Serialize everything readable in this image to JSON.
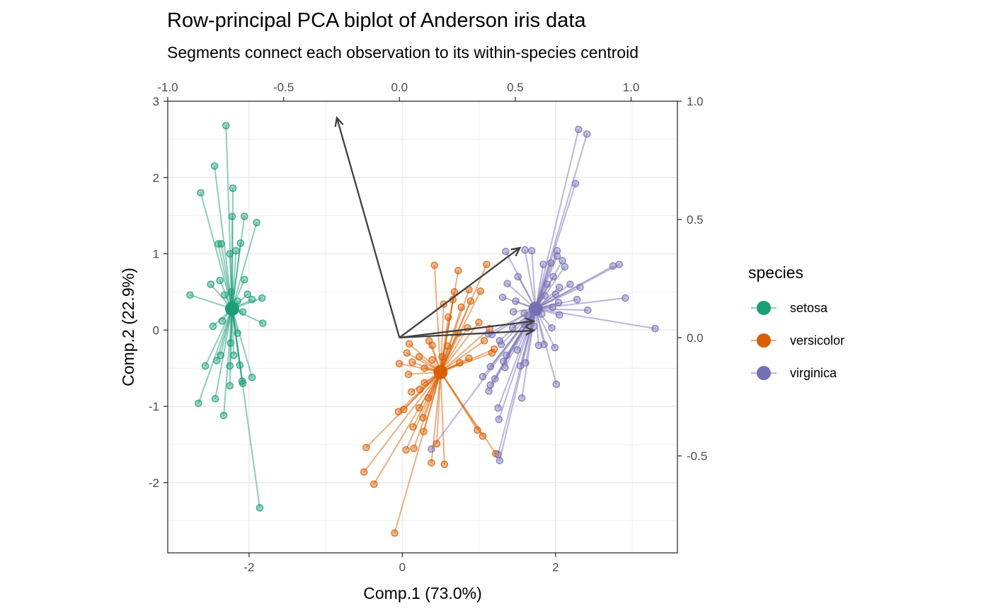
{
  "chart_data": {
    "type": "scatter",
    "title": "Row-principal PCA biplot of Anderson iris data",
    "subtitle": "Segments connect each observation to its within-species centroid",
    "xlabel": "Comp.1 (73.0%)",
    "ylabel": "Comp.2 (22.9%)",
    "xlim": [
      -3.06,
      3.59
    ],
    "ylim": [
      -2.92,
      3.0
    ],
    "x_ticks": [
      "-2",
      "0",
      "2"
    ],
    "y_ticks": [
      "-2",
      "-1",
      "0",
      "1",
      "2",
      "3"
    ],
    "x2lim": [
      -1.0,
      1.2
    ],
    "y2lim": [
      -0.91,
      1.0
    ],
    "x2_ticks": [
      "-1.0",
      "-0.5",
      "0.0",
      "0.5",
      "1.0"
    ],
    "y2_ticks": [
      "-0.5",
      "0.0",
      "0.5",
      "1.0"
    ],
    "grid": true,
    "legend": {
      "title": "species",
      "placement": "right"
    },
    "series": [
      {
        "name": "setosa",
        "color": "#1b9e77",
        "centroid": [
          -2.22,
          0.28
        ],
        "points": [
          [
            -2.3,
            2.68
          ],
          [
            -2.45,
            2.15
          ],
          [
            -2.63,
            1.8
          ],
          [
            -2.21,
            1.86
          ],
          [
            -2.22,
            1.49
          ],
          [
            -2.06,
            1.49
          ],
          [
            -1.9,
            1.41
          ],
          [
            -2.4,
            1.13
          ],
          [
            -2.36,
            1.13
          ],
          [
            -2.11,
            1.14
          ],
          [
            -2.17,
            1.04
          ],
          [
            -2.25,
            1.0
          ],
          [
            -2.38,
            0.65
          ],
          [
            -2.06,
            0.66
          ],
          [
            -2.5,
            0.6
          ],
          [
            -2.32,
            0.46
          ],
          [
            -2.15,
            0.38
          ],
          [
            -2.02,
            0.47
          ],
          [
            -1.96,
            0.4
          ],
          [
            -1.83,
            0.42
          ],
          [
            -2.77,
            0.46
          ],
          [
            -2.23,
            0.5
          ],
          [
            -2.08,
            0.24
          ],
          [
            -2.35,
            0.12
          ],
          [
            -1.82,
            0.09
          ],
          [
            -2.47,
            0.05
          ],
          [
            -2.15,
            -0.04
          ],
          [
            -2.24,
            -0.17
          ],
          [
            -2.37,
            -0.33
          ],
          [
            -2.42,
            -0.4
          ],
          [
            -2.2,
            -0.33
          ],
          [
            -2.25,
            -0.47
          ],
          [
            -2.12,
            -0.46
          ],
          [
            -2.57,
            -0.47
          ],
          [
            -1.96,
            -0.62
          ],
          [
            -2.09,
            -0.67
          ],
          [
            -2.25,
            -0.73
          ],
          [
            -2.08,
            -0.7
          ],
          [
            -2.44,
            -0.9
          ],
          [
            -2.66,
            -0.96
          ],
          [
            -2.33,
            -1.12
          ],
          [
            -1.86,
            -2.33
          ]
        ]
      },
      {
        "name": "versicolor",
        "color": "#d95f02",
        "centroid": [
          0.5,
          -0.55
        ],
        "points": [
          [
            0.42,
            0.85
          ],
          [
            1.1,
            0.86
          ],
          [
            0.73,
            0.78
          ],
          [
            0.87,
            0.53
          ],
          [
            1.02,
            0.51
          ],
          [
            0.68,
            0.5
          ],
          [
            0.66,
            0.4
          ],
          [
            0.89,
            0.38
          ],
          [
            0.54,
            0.34
          ],
          [
            0.77,
            0.3
          ],
          [
            0.6,
            0.17
          ],
          [
            1.0,
            0.1
          ],
          [
            0.85,
            0.03
          ],
          [
            1.14,
            0.02
          ],
          [
            0.73,
            -0.04
          ],
          [
            0.35,
            -0.14
          ],
          [
            1.07,
            -0.14
          ],
          [
            0.09,
            -0.18
          ],
          [
            0.39,
            -0.2
          ],
          [
            0.59,
            -0.21
          ],
          [
            1.2,
            -0.25
          ],
          [
            1.17,
            -0.3
          ],
          [
            0.06,
            -0.3
          ],
          [
            0.22,
            -0.35
          ],
          [
            0.52,
            -0.35
          ],
          [
            0.39,
            -0.39
          ],
          [
            0.87,
            -0.37
          ],
          [
            0.29,
            -0.5
          ],
          [
            0.13,
            -0.42
          ],
          [
            0.75,
            -0.43
          ],
          [
            -0.04,
            -0.44
          ],
          [
            0.08,
            -0.58
          ],
          [
            0.29,
            -0.69
          ],
          [
            0.23,
            -0.78
          ],
          [
            0.12,
            -0.81
          ],
          [
            0.34,
            -0.89
          ],
          [
            0.22,
            -1.02
          ],
          [
            0.02,
            -1.04
          ],
          [
            -0.05,
            -1.07
          ],
          [
            0.27,
            -1.15
          ],
          [
            0.14,
            -1.27
          ],
          [
            0.28,
            -1.33
          ],
          [
            0.98,
            -1.31
          ],
          [
            0.45,
            -1.49
          ],
          [
            1.05,
            -1.39
          ],
          [
            0.15,
            -1.55
          ],
          [
            0.05,
            -1.57
          ],
          [
            -0.47,
            -1.54
          ],
          [
            1.22,
            -1.62
          ],
          [
            0.38,
            -1.74
          ],
          [
            0.55,
            -1.76
          ],
          [
            -0.5,
            -1.86
          ],
          [
            -0.37,
            -2.02
          ],
          [
            -0.1,
            -2.66
          ]
        ]
      },
      {
        "name": "virginica",
        "color": "#7570b3",
        "centroid": [
          1.74,
          0.28
        ],
        "points": [
          [
            2.3,
            2.63
          ],
          [
            2.41,
            2.57
          ],
          [
            2.26,
            1.92
          ],
          [
            1.35,
            1.03
          ],
          [
            1.6,
            1.05
          ],
          [
            1.69,
            1.04
          ],
          [
            2.02,
            1.04
          ],
          [
            2.02,
            0.97
          ],
          [
            1.94,
            0.88
          ],
          [
            2.09,
            0.91
          ],
          [
            2.12,
            0.83
          ],
          [
            2.75,
            0.84
          ],
          [
            2.83,
            0.86
          ],
          [
            1.84,
            0.86
          ],
          [
            1.97,
            0.7
          ],
          [
            1.51,
            0.7
          ],
          [
            1.89,
            0.6
          ],
          [
            1.37,
            0.61
          ],
          [
            2.19,
            0.6
          ],
          [
            2.05,
            0.56
          ],
          [
            2.0,
            0.47
          ],
          [
            1.86,
            0.45
          ],
          [
            2.32,
            0.56
          ],
          [
            2.91,
            0.42
          ],
          [
            2.28,
            0.4
          ],
          [
            1.31,
            0.43
          ],
          [
            1.48,
            0.38
          ],
          [
            2.04,
            0.36
          ],
          [
            1.96,
            0.3
          ],
          [
            2.42,
            0.26
          ],
          [
            1.45,
            0.24
          ],
          [
            1.59,
            0.22
          ],
          [
            1.82,
            0.21
          ],
          [
            2.05,
            0.2
          ],
          [
            1.6,
            0.07
          ],
          [
            1.72,
            0.05
          ],
          [
            1.95,
            0.03
          ],
          [
            1.44,
            0.03
          ],
          [
            3.3,
            0.02
          ],
          [
            1.12,
            -0.05
          ],
          [
            1.17,
            -0.06
          ],
          [
            1.27,
            -0.14
          ],
          [
            1.29,
            -0.19
          ],
          [
            1.85,
            -0.19
          ],
          [
            1.99,
            -0.23
          ],
          [
            1.78,
            -0.2
          ],
          [
            1.5,
            -0.26
          ],
          [
            1.36,
            -0.33
          ],
          [
            1.32,
            -0.41
          ],
          [
            1.61,
            -0.43
          ],
          [
            1.54,
            -0.47
          ],
          [
            1.34,
            -0.49
          ],
          [
            1.15,
            -0.48
          ],
          [
            1.05,
            -0.61
          ],
          [
            1.21,
            -0.64
          ],
          [
            1.15,
            -0.72
          ],
          [
            2.01,
            -0.71
          ],
          [
            1.13,
            -0.8
          ],
          [
            1.56,
            -0.89
          ],
          [
            1.25,
            -1.02
          ],
          [
            1.26,
            -1.17
          ],
          [
            1.25,
            -1.63
          ],
          [
            1.27,
            -1.71
          ],
          [
            0.38,
            -1.56
          ]
        ]
      }
    ],
    "variable_arrows": [
      {
        "x2": -0.27,
        "y2": 0.93
      },
      {
        "x2": 0.52,
        "y2": 0.38
      },
      {
        "x2": 0.58,
        "y2": 0.03
      },
      {
        "x2": 0.58,
        "y2": 0.07
      }
    ]
  }
}
